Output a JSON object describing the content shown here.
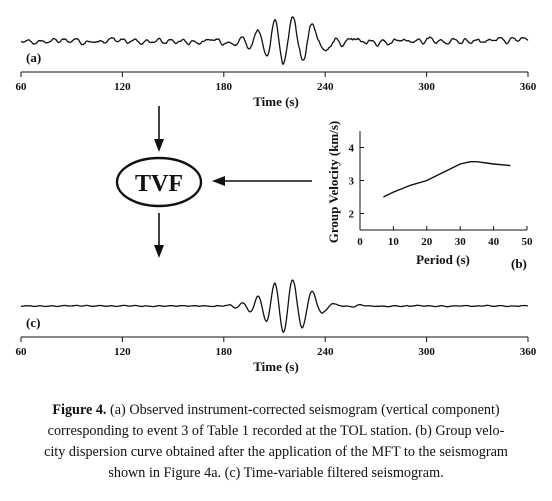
{
  "figure": {
    "panel_a": {
      "label": "(a)",
      "x_ticks": [
        "60",
        "120",
        "180",
        "240",
        "300",
        "360"
      ],
      "x_label": "Time (s)"
    },
    "panel_b": {
      "label": "(b)",
      "x_label": "Period (s)",
      "y_label": "Group Velocity (km/s)",
      "x_ticks": [
        "0",
        "10",
        "20",
        "30",
        "40",
        "50"
      ],
      "y_ticks": [
        "2",
        "3",
        "4"
      ]
    },
    "panel_c": {
      "label": "(c)",
      "x_ticks": [
        "60",
        "120",
        "180",
        "240",
        "300",
        "360"
      ],
      "x_label": "Time (s)"
    },
    "tvf_label": "TVF"
  },
  "chart_data": [
    {
      "type": "line",
      "panel": "a",
      "description_of_signal": "observed instrument-corrected seismogram",
      "xlim": [
        60,
        360
      ],
      "xlabel": "Time (s)",
      "ylabel": "",
      "signal_parameters": {
        "main_arrival_center": 218,
        "main_arrival_width": 20,
        "dominant_period": 11,
        "peak_amplitude": 1.0,
        "noise_amplitude": 0.12
      }
    },
    {
      "type": "line",
      "panel": "b",
      "title": "",
      "xlabel": "Period (s)",
      "ylabel": "Group Velocity (km/s)",
      "xlim": [
        0,
        50
      ],
      "ylim": [
        1.5,
        4.5
      ],
      "x": [
        7,
        10,
        15,
        20,
        25,
        30,
        33,
        35,
        40,
        45
      ],
      "y": [
        2.5,
        2.65,
        2.85,
        3.0,
        3.25,
        3.5,
        3.57,
        3.57,
        3.5,
        3.45
      ]
    },
    {
      "type": "line",
      "panel": "c",
      "description_of_signal": "time-variable filtered seismogram",
      "xlim": [
        60,
        360
      ],
      "xlabel": "Time (s)",
      "ylabel": "",
      "signal_parameters": {
        "main_arrival_center": 218,
        "main_arrival_width": 18,
        "dominant_period": 11,
        "peak_amplitude": 1.0,
        "noise_amplitude": 0.02
      }
    }
  ],
  "caption": {
    "prefix": "Figure 4.",
    "lines": [
      " (a) Observed instrument-corrected seismogram (vertical component)",
      "corresponding to event 3 of Table 1 recorded at the TOL station. (b) Group velo-",
      "city dispersion curve obtained after the application of the MFT to the seismogram",
      "shown in Figure 4a. (c) Time-variable filtered seismogram."
    ]
  }
}
